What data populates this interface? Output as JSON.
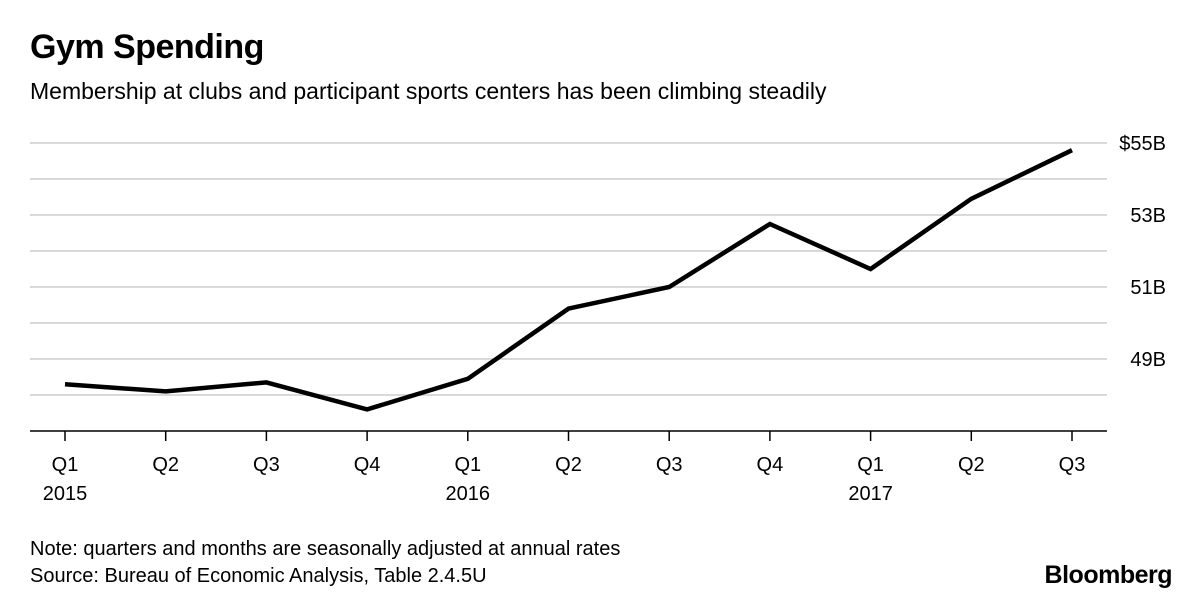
{
  "chart_data": {
    "type": "line",
    "title": "Gym Spending",
    "subtitle": "Membership at clubs and participant sports centers has been climbing steadily",
    "x_labels": [
      {
        "quarter": "Q1",
        "year": "2015"
      },
      {
        "quarter": "Q2",
        "year": ""
      },
      {
        "quarter": "Q3",
        "year": ""
      },
      {
        "quarter": "Q4",
        "year": ""
      },
      {
        "quarter": "Q1",
        "year": "2016"
      },
      {
        "quarter": "Q2",
        "year": ""
      },
      {
        "quarter": "Q3",
        "year": ""
      },
      {
        "quarter": "Q4",
        "year": ""
      },
      {
        "quarter": "Q1",
        "year": "2017"
      },
      {
        "quarter": "Q2",
        "year": ""
      },
      {
        "quarter": "Q3",
        "year": ""
      }
    ],
    "series": [
      {
        "values": [
          48.3,
          48.1,
          48.35,
          47.6,
          48.45,
          50.4,
          51.0,
          52.75,
          51.5,
          53.45,
          54.8
        ]
      }
    ],
    "ylim": [
      47,
      55
    ],
    "yticks": [
      {
        "value": 55,
        "label": "$55B"
      },
      {
        "value": 53,
        "label": "53B"
      },
      {
        "value": 51,
        "label": "51B"
      },
      {
        "value": 49,
        "label": "49B"
      }
    ],
    "gridlines": [
      48,
      49,
      50,
      51,
      52,
      53,
      54,
      55
    ],
    "grid": true,
    "line_color": "#000000",
    "grid_color": "#d9d9d9"
  },
  "footer": {
    "note": "Note: quarters and months are seasonally adjusted at annual rates",
    "source": "Source: Bureau of Economic Analysis,  Table 2.4.5U"
  },
  "brand": {
    "logo": "Bloomberg"
  }
}
